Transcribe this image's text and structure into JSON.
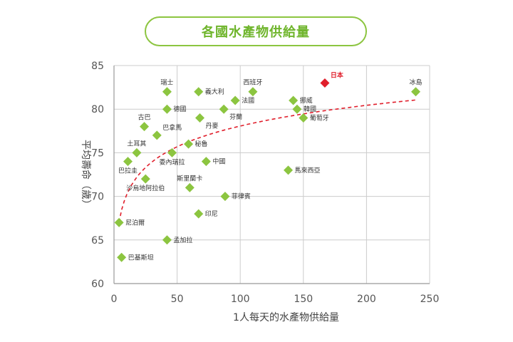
{
  "title": "各國水產物供給量",
  "chart_data": {
    "type": "scatter",
    "title": "各國水產物供給量",
    "xlabel": "1人每天的水產物供給量",
    "ylabel": "平均壽命（歲）",
    "xlim": [
      0,
      250
    ],
    "ylim": [
      60,
      85
    ],
    "xticks": [
      0,
      50,
      100,
      150,
      200,
      250
    ],
    "yticks": [
      60,
      65,
      70,
      75,
      80,
      85
    ],
    "grid": true,
    "trendline": "logarithmic-dashed",
    "colors": {
      "point": "#8cc540",
      "highlight": "#e01e2b",
      "trend": "#e01e2b",
      "grid": "#cccccc"
    },
    "points": [
      {
        "name": "瑞士",
        "x": 42,
        "y": 82,
        "label_pos": "top"
      },
      {
        "name": "義大利",
        "x": 67,
        "y": 82,
        "label_pos": "right"
      },
      {
        "name": "西班牙",
        "x": 110,
        "y": 82,
        "label_pos": "top"
      },
      {
        "name": "日本",
        "x": 167,
        "y": 83,
        "label_pos": "top-right",
        "highlight": true
      },
      {
        "name": "冰島",
        "x": 239,
        "y": 82,
        "label_pos": "top"
      },
      {
        "name": "法國",
        "x": 96,
        "y": 81,
        "label_pos": "right"
      },
      {
        "name": "挪威",
        "x": 142,
        "y": 81,
        "label_pos": "right"
      },
      {
        "name": "德國",
        "x": 42,
        "y": 80,
        "label_pos": "right"
      },
      {
        "name": "芬蘭",
        "x": 87,
        "y": 80,
        "label_pos": "bottom-right"
      },
      {
        "name": "韓國",
        "x": 145,
        "y": 80,
        "label_pos": "right"
      },
      {
        "name": "古巴",
        "x": 24,
        "y": 78,
        "label_pos": "top"
      },
      {
        "name": "丹麥",
        "x": 68,
        "y": 79,
        "label_pos": "bottom-right"
      },
      {
        "name": "葡萄牙",
        "x": 150,
        "y": 79,
        "label_pos": "right"
      },
      {
        "name": "巴拿馬",
        "x": 34,
        "y": 77,
        "label_pos": "top-right"
      },
      {
        "name": "秘魯",
        "x": 59,
        "y": 76,
        "label_pos": "right"
      },
      {
        "name": "土耳其",
        "x": 18,
        "y": 75,
        "label_pos": "top"
      },
      {
        "name": "委內瑞拉",
        "x": 46,
        "y": 75,
        "label_pos": "bottom"
      },
      {
        "name": "巴拉圭",
        "x": 11,
        "y": 74,
        "label_pos": "bottom"
      },
      {
        "name": "中國",
        "x": 73,
        "y": 74,
        "label_pos": "right"
      },
      {
        "name": "馬來西亞",
        "x": 138,
        "y": 73,
        "label_pos": "right"
      },
      {
        "name": "沙烏地阿拉伯",
        "x": 25,
        "y": 72,
        "label_pos": "bottom"
      },
      {
        "name": "斯里蘭卡",
        "x": 60,
        "y": 71,
        "label_pos": "top"
      },
      {
        "name": "菲律賓",
        "x": 88,
        "y": 70,
        "label_pos": "right"
      },
      {
        "name": "尼泊爾",
        "x": 4,
        "y": 67,
        "label_pos": "right"
      },
      {
        "name": "印尼",
        "x": 67,
        "y": 68,
        "label_pos": "right"
      },
      {
        "name": "孟加拉",
        "x": 42,
        "y": 65,
        "label_pos": "right"
      },
      {
        "name": "巴基斯坦",
        "x": 6,
        "y": 63,
        "label_pos": "right"
      }
    ]
  }
}
